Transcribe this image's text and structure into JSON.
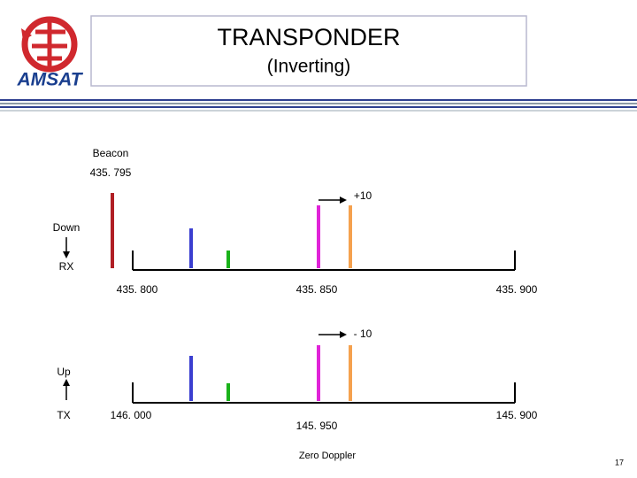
{
  "header": {
    "title": "TRANSPONDER",
    "subtitle": "(Inverting)",
    "logo": "AMSAT"
  },
  "downlink": {
    "beacon_label": "Beacon",
    "beacon_freq": "435. 795",
    "shift": "+10",
    "direction": "Down",
    "link": "RX",
    "ticks": [
      "435. 800",
      "435. 850",
      "435. 900"
    ]
  },
  "uplink": {
    "shift": "- 10",
    "direction": "Up",
    "link": "TX",
    "ticks": [
      "146. 000",
      "145. 950",
      "145. 900"
    ]
  },
  "footer": {
    "note": "Zero Doppler",
    "page": "17"
  }
}
